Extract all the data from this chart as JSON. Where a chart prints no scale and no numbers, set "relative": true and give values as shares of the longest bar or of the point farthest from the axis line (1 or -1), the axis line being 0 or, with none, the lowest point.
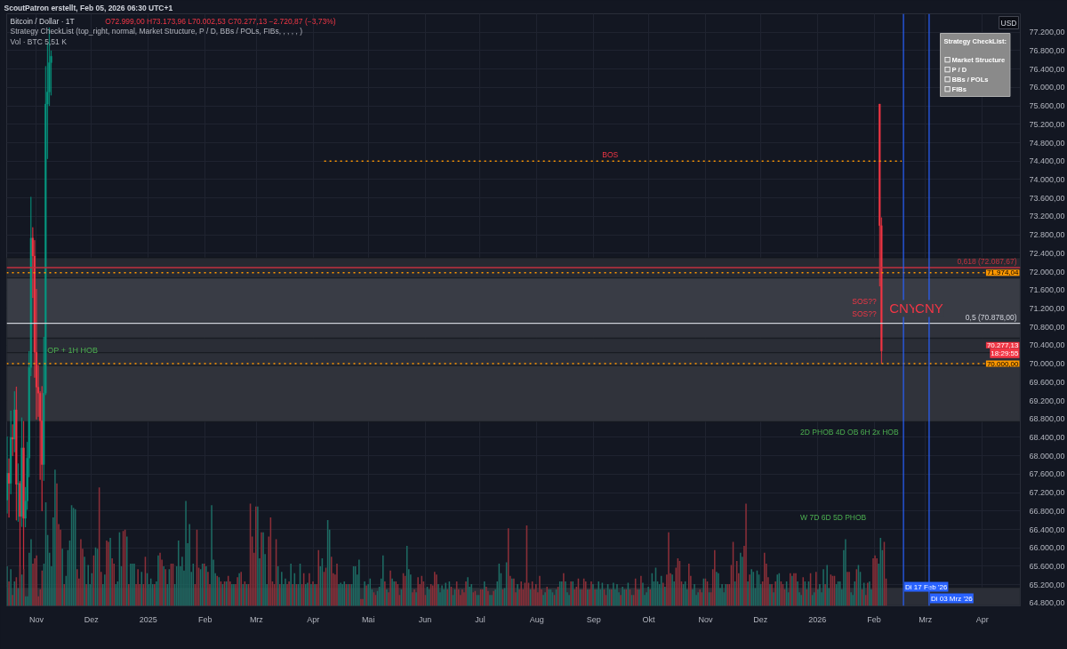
{
  "chart_data": [
    {
      "type": "candlestick",
      "title": "Bitcoin / Dollar · 1T",
      "subtitle": "O72.999,00 H73.173,96 L70.002,53 C70.277,13 −2.720,87 (−3,73%)",
      "ylabel": "USD",
      "x": [
        "2024-10-16",
        "2024-10-17",
        "2024-10-18",
        "2024-10-19",
        "2024-10-20",
        "2024-10-21",
        "2024-10-22",
        "2024-10-23",
        "2024-10-24",
        "2024-10-25",
        "2024-10-26",
        "2024-10-27",
        "2024-10-28",
        "2024-10-29",
        "2024-10-30",
        "2024-10-31",
        "2024-11-01",
        "2024-11-02",
        "2024-11-03",
        "2024-11-04",
        "2024-11-05",
        "2024-11-06",
        "2024-11-07",
        "2024-11-08",
        "2024-11-09",
        "2026-02-04",
        "2026-02-05"
      ],
      "ohlc": [
        [
          67040,
          68420,
          66750,
          67620
        ],
        [
          67620,
          67940,
          66660,
          67400
        ],
        [
          67400,
          68980,
          67170,
          68400
        ],
        [
          68400,
          68680,
          68000,
          68360
        ],
        [
          68360,
          69400,
          68080,
          69000
        ],
        [
          69000,
          69500,
          66600,
          67380
        ],
        [
          67380,
          67830,
          66570,
          67400
        ],
        [
          67400,
          67450,
          65260,
          66680
        ],
        [
          66680,
          68830,
          66460,
          68170
        ],
        [
          68170,
          68750,
          65520,
          66640
        ],
        [
          66640,
          67320,
          66450,
          67020
        ],
        [
          67020,
          68300,
          66830,
          67950
        ],
        [
          67950,
          70270,
          67540,
          69920
        ],
        [
          69920,
          73620,
          69730,
          72730
        ],
        [
          72730,
          72960,
          71430,
          72340
        ],
        [
          72340,
          72680,
          69700,
          70250
        ],
        [
          70250,
          71620,
          68790,
          69490
        ],
        [
          69490,
          69970,
          68850,
          69360
        ],
        [
          69360,
          69400,
          67480,
          68760
        ],
        [
          68760,
          69510,
          66800,
          67810
        ],
        [
          67810,
          70580,
          67460,
          69360
        ],
        [
          69360,
          76460,
          69320,
          75640
        ],
        [
          75640,
          76960,
          74450,
          75900
        ],
        [
          75900,
          77300,
          75600,
          76540
        ],
        [
          76540,
          76800,
          75830,
          76680
        ],
        [
          75640,
          75640,
          71680,
          72999
        ],
        [
          72999.0,
          73173.96,
          70002.53,
          70277.13
        ]
      ],
      "colors": [
        "#089981",
        "#f23645",
        "#089981",
        "#f23645",
        "#089981",
        "#f23645",
        "#089981",
        "#f23645",
        "#089981",
        "#f23645",
        "#089981",
        "#089981",
        "#089981",
        "#089981",
        "#f23645",
        "#f23645",
        "#f23645",
        "#f23645",
        "#f23645",
        "#f23645",
        "#089981",
        "#089981",
        "#089981",
        "#089981",
        "#089981",
        "#f23645",
        "#f23645"
      ],
      "value_labels": [
        null,
        null,
        null,
        null,
        null,
        null,
        null,
        null,
        null,
        null,
        null,
        null,
        null,
        null,
        null,
        null,
        null,
        null,
        null,
        null,
        null,
        null,
        null,
        null,
        null,
        null,
        "70.277,13"
      ],
      "series": [
        {
          "type": "line",
          "x": [
            "2025-04-07",
            "2026-02-16"
          ],
          "values": [
            74400,
            74400
          ],
          "color": "#ff9800",
          "line_style": "dotted"
        }
      ],
      "xlim": [
        "2024-10-15T18:00",
        "2026-04-21T18:00"
      ],
      "xticks": [
        {
          "value": "2024-11-01",
          "label": "Nov"
        },
        {
          "value": "2024-12-01",
          "label": "Dez"
        },
        {
          "value": "2025-01-01",
          "label": "2025"
        },
        {
          "value": "2025-02-01",
          "label": "Feb"
        },
        {
          "value": "2025-03-01",
          "label": "Mrz"
        },
        {
          "value": "2025-04-01",
          "label": "Apr"
        },
        {
          "value": "2025-05-01",
          "label": "Mai"
        },
        {
          "value": "2025-06-01",
          "label": "Jun"
        },
        {
          "value": "2025-07-01",
          "label": "Jul"
        },
        {
          "value": "2025-08-01",
          "label": "Aug"
        },
        {
          "value": "2025-09-01",
          "label": "Sep"
        },
        {
          "value": "2025-10-01",
          "label": "Okt"
        },
        {
          "value": "2025-11-01",
          "label": "Nov"
        },
        {
          "value": "2025-12-01",
          "label": "Dez"
        },
        {
          "value": "2026-01-01",
          "label": "2026"
        },
        {
          "value": "2026-02-01",
          "label": "Feb"
        },
        {
          "value": "2026-03-01",
          "label": "Mrz"
        },
        {
          "value": "2026-04-01",
          "label": "Apr"
        }
      ],
      "ylim": [
        64740,
        77600
      ],
      "yticks": [
        {
          "value": 64800,
          "label": "64.800,00"
        },
        {
          "value": 65200,
          "label": "65.200,00"
        },
        {
          "value": 65600,
          "label": "65.600,00"
        },
        {
          "value": 66000,
          "label": "66.000,00"
        },
        {
          "value": 66400,
          "label": "66.400,00"
        },
        {
          "value": 66800,
          "label": "66.800,00"
        },
        {
          "value": 67200,
          "label": "67.200,00"
        },
        {
          "value": 67600,
          "label": "67.600,00"
        },
        {
          "value": 68000,
          "label": "68.000,00"
        },
        {
          "value": 68400,
          "label": "68.400,00"
        },
        {
          "value": 68800,
          "label": "68.800,00"
        },
        {
          "value": 69200,
          "label": "69.200,00"
        },
        {
          "value": 69600,
          "label": "69.600,00"
        },
        {
          "value": 70000,
          "label": "70.000,00"
        },
        {
          "value": 70400,
          "label": "70.400,00"
        },
        {
          "value": 70800,
          "label": "70.800,00"
        },
        {
          "value": 71200,
          "label": "71.200,00"
        },
        {
          "value": 71600,
          "label": "71.600,00"
        },
        {
          "value": 72000,
          "label": "72.000,00"
        },
        {
          "value": 72400,
          "label": "72.400,00"
        },
        {
          "value": 72800,
          "label": "72.800,00"
        },
        {
          "value": 73200,
          "label": "73.200,00"
        },
        {
          "value": 73600,
          "label": "73.600,00"
        },
        {
          "value": 74000,
          "label": "74.000,00"
        },
        {
          "value": 74400,
          "label": "74.400,00"
        },
        {
          "value": 74800,
          "label": "74.800,00"
        },
        {
          "value": 75200,
          "label": "75.200,00"
        },
        {
          "value": 75600,
          "label": "75.600,00"
        },
        {
          "value": 76000,
          "label": "76.000,00"
        },
        {
          "value": 76400,
          "label": "76.400,00"
        },
        {
          "value": 76800,
          "label": "76.800,00"
        },
        {
          "value": 77200,
          "label": "77.200,00"
        }
      ],
      "grid": true,
      "bands": [
        {
          "axis": "y",
          "from": 72300,
          "to": 71860,
          "color": "#262931"
        },
        {
          "axis": "y",
          "from": 71860,
          "to": 70880,
          "color": "#393c45"
        },
        {
          "axis": "y",
          "from": 70880,
          "to": 70550,
          "color": "#2f323b"
        },
        {
          "axis": "y",
          "from": 70550,
          "to": 70240,
          "color": "#2a2d36"
        },
        {
          "axis": "y",
          "from": 70240,
          "to": 69960,
          "color": "#2c2f38"
        },
        {
          "axis": "y",
          "from": 69960,
          "to": 68740,
          "color": "#30333b"
        },
        {
          "axis": "y",
          "from": 65140,
          "to": 64740,
          "color": "#2b2e37"
        }
      ],
      "ref_lines": [
        {
          "axis": "y",
          "value": 72087.67,
          "label": "0,618 (72.087,67)",
          "color": "#c2313f"
        },
        {
          "axis": "y",
          "value": 71974.04,
          "label": "71.974,04",
          "color": "#ff9800",
          "line_style": "dotted"
        },
        {
          "axis": "y",
          "value": 70878,
          "label": "0,5 (70.878,00)",
          "color": "#d1d4dc"
        },
        {
          "axis": "y",
          "value": 70000,
          "label": "70.000,00",
          "color": "#ff9800",
          "line_style": "dotted"
        },
        {
          "axis": "x",
          "value": "2026-02-17",
          "label": "Di 17 Feb '26",
          "color": "#2962ff"
        },
        {
          "axis": "x",
          "value": "2026-03-03",
          "label": "Di 03 Mrz '26",
          "color": "#2962ff"
        }
      ],
      "annotations": [
        "ScoutPatron erstellt, Feb 05, 2026 06:30 UTC+1",
        "Strategy CheckList (top_right, normal, Market Structure, P / D, BBs / POLs, FIBs, , , , , )",
        "Vol · BTC 5,51 K",
        "Strategy CheckList:\n\n☐ Market Structure\n☐ P / D\n☐ BBs / POLs\n☐ FIBs",
        "18:29:55",
        "2D PHOB 4D OB 6H 2x HOB",
        "W 7D 6D 5D PHOB",
        "SOS??",
        "SOS??",
        {
          "text": "BOS",
          "x": "2025-09-10",
          "y": 74400
        },
        {
          "text": "CNY",
          "x": "2026-02-17",
          "y": 71200
        },
        {
          "text": "CNY",
          "x": "2026-03-03",
          "y": 71200
        },
        {
          "text": "OP + 1H HOB",
          "x": "2024-11-07",
          "y": 70300
        }
      ]
    },
    {
      "type": "bar",
      "relative": true,
      "tick_labels": false,
      "xlim": [
        "2024-10-15T18:00",
        "2026-04-21T18:00"
      ],
      "x": [
        "2024-10-16",
        "2024-10-17",
        "2024-10-18",
        "2024-10-19",
        "2024-10-20",
        "2024-10-21",
        "2024-10-22",
        "2024-10-23",
        "2024-10-24",
        "2024-10-25",
        "2024-10-26",
        "2024-10-27",
        "2024-10-28",
        "2024-10-29",
        "2024-10-30",
        "2024-10-31",
        "2024-11-01",
        "2024-11-02",
        "2024-11-03",
        "2024-11-04",
        "2024-11-05",
        "2024-11-06",
        "2024-11-07",
        "2024-11-08",
        "2024-11-09",
        "2024-11-10",
        "2024-11-11",
        "2024-11-12",
        "2024-11-13",
        "2024-11-14",
        "2024-11-15",
        "2024-11-16",
        "2024-11-17",
        "2024-11-18",
        "2024-11-19",
        "2024-11-20",
        "2024-11-21",
        "2024-11-22",
        "2024-11-23",
        "2024-11-24",
        "2024-11-25",
        "2024-11-26",
        "2024-11-27",
        "2024-11-28",
        "2024-11-29",
        "2024-11-30",
        "2024-12-01",
        "2024-12-02",
        "2024-12-03",
        "2024-12-04",
        "2024-12-05",
        "2024-12-06",
        "2024-12-07",
        "2024-12-08",
        "2024-12-09",
        "2024-12-10",
        "2024-12-11",
        "2024-12-12",
        "2024-12-13",
        "2024-12-14",
        "2024-12-15",
        "2024-12-16",
        "2024-12-17",
        "2024-12-18",
        "2024-12-19",
        "2024-12-20",
        "2024-12-21",
        "2024-12-22",
        "2024-12-23",
        "2024-12-24",
        "2024-12-25",
        "2024-12-26",
        "2024-12-27",
        "2024-12-28",
        "2024-12-29",
        "2024-12-30",
        "2024-12-31",
        "2025-01-01",
        "2025-01-02",
        "2025-01-03",
        "2025-01-04",
        "2025-01-05",
        "2025-01-06",
        "2025-01-07",
        "2025-01-08",
        "2025-01-09",
        "2025-01-10",
        "2025-01-11",
        "2025-01-12",
        "2025-01-13",
        "2025-01-14",
        "2025-01-15",
        "2025-01-16",
        "2025-01-17",
        "2025-01-18",
        "2025-01-19",
        "2025-01-20",
        "2025-01-21",
        "2025-01-22",
        "2025-01-23",
        "2025-01-24",
        "2025-01-25",
        "2025-01-26",
        "2025-01-27",
        "2025-01-28",
        "2025-01-29",
        "2025-01-30",
        "2025-01-31",
        "2025-02-01",
        "2025-02-02",
        "2025-02-03",
        "2025-02-04",
        "2025-02-05",
        "2025-02-06",
        "2025-02-07",
        "2025-02-08",
        "2025-02-09",
        "2025-02-10",
        "2025-02-11",
        "2025-02-12",
        "2025-02-13",
        "2025-02-14",
        "2025-02-15",
        "2025-02-16",
        "2025-02-17",
        "2025-02-18",
        "2025-02-19",
        "2025-02-20",
        "2025-02-21",
        "2025-02-22",
        "2025-02-23",
        "2025-02-24",
        "2025-02-25",
        "2025-02-26",
        "2025-02-27",
        "2025-02-28",
        "2025-03-01",
        "2025-03-02",
        "2025-03-03",
        "2025-03-04",
        "2025-03-05",
        "2025-03-06",
        "2025-03-07",
        "2025-03-08",
        "2025-03-09",
        "2025-03-10",
        "2025-03-11",
        "2025-03-12",
        "2025-03-13",
        "2025-03-14",
        "2025-03-15",
        "2025-03-16",
        "2025-03-17",
        "2025-03-18",
        "2025-03-19",
        "2025-03-20",
        "2025-03-21",
        "2025-03-22",
        "2025-03-23",
        "2025-03-24",
        "2025-03-25",
        "2025-03-26",
        "2025-03-27",
        "2025-03-28",
        "2025-03-29",
        "2025-03-30",
        "2025-03-31",
        "2025-04-01",
        "2025-04-02",
        "2025-04-03",
        "2025-04-04",
        "2025-04-05",
        "2025-04-06",
        "2025-04-07",
        "2025-04-08",
        "2025-04-09",
        "2025-04-10",
        "2025-04-11",
        "2025-04-12",
        "2025-04-13",
        "2025-04-14",
        "2025-04-15",
        "2025-04-16",
        "2025-04-17",
        "2025-04-18",
        "2025-04-19",
        "2025-04-20",
        "2025-04-21",
        "2025-04-22",
        "2025-04-23",
        "2025-04-24",
        "2025-04-25",
        "2025-04-26",
        "2025-04-27",
        "2025-04-28",
        "2025-04-29",
        "2025-04-30",
        "2025-05-01",
        "2025-05-02",
        "2025-05-03",
        "2025-05-04",
        "2025-05-05",
        "2025-05-06",
        "2025-05-07",
        "2025-05-08",
        "2025-05-09",
        "2025-05-10",
        "2025-05-11",
        "2025-05-12",
        "2025-05-13",
        "2025-05-14",
        "2025-05-15",
        "2025-05-16",
        "2025-05-17",
        "2025-05-18",
        "2025-05-19",
        "2025-05-20",
        "2025-05-21",
        "2025-05-22",
        "2025-05-23",
        "2025-05-24",
        "2025-05-25",
        "2025-05-26",
        "2025-05-27",
        "2025-05-28",
        "2025-05-29",
        "2025-05-30",
        "2025-05-31",
        "2025-06-01",
        "2025-06-02",
        "2025-06-03",
        "2025-06-04",
        "2025-06-05",
        "2025-06-06",
        "2025-06-07",
        "2025-06-08",
        "2025-06-09",
        "2025-06-10",
        "2025-06-11",
        "2025-06-12",
        "2025-06-13",
        "2025-06-14",
        "2025-06-15",
        "2025-06-16",
        "2025-06-17",
        "2025-06-18",
        "2025-06-19",
        "2025-06-20",
        "2025-06-21",
        "2025-06-22",
        "2025-06-23",
        "2025-06-24",
        "2025-06-25",
        "2025-06-26",
        "2025-06-27",
        "2025-06-28",
        "2025-06-29",
        "2025-06-30",
        "2025-07-01",
        "2025-07-02",
        "2025-07-03",
        "2025-07-04",
        "2025-07-05",
        "2025-07-06",
        "2025-07-07",
        "2025-07-08",
        "2025-07-09",
        "2025-07-10",
        "2025-07-11",
        "2025-07-12",
        "2025-07-13",
        "2025-07-14",
        "2025-07-15",
        "2025-07-16",
        "2025-07-17",
        "2025-07-18",
        "2025-07-19",
        "2025-07-20",
        "2025-07-21",
        "2025-07-22",
        "2025-07-23",
        "2025-07-24",
        "2025-07-25",
        "2025-07-26",
        "2025-07-27",
        "2025-07-28",
        "2025-07-29",
        "2025-07-30",
        "2025-07-31",
        "2025-08-01",
        "2025-08-02",
        "2025-08-03",
        "2025-08-04",
        "2025-08-05",
        "2025-08-06",
        "2025-08-07",
        "2025-08-08",
        "2025-08-09",
        "2025-08-10",
        "2025-08-11",
        "2025-08-12",
        "2025-08-13",
        "2025-08-14",
        "2025-08-15",
        "2025-08-16",
        "2025-08-17",
        "2025-08-18",
        "2025-08-19",
        "2025-08-20",
        "2025-08-21",
        "2025-08-22",
        "2025-08-23",
        "2025-08-24",
        "2025-08-25",
        "2025-08-26",
        "2025-08-27",
        "2025-08-28",
        "2025-08-29",
        "2025-08-30",
        "2025-08-31",
        "2025-09-01",
        "2025-09-02",
        "2025-09-03",
        "2025-09-04",
        "2025-09-05",
        "2025-09-06",
        "2025-09-07",
        "2025-09-08",
        "2025-09-09",
        "2025-09-10",
        "2025-09-11",
        "2025-09-12",
        "2025-09-13",
        "2025-09-14",
        "2025-09-15",
        "2025-09-16",
        "2025-09-17",
        "2025-09-18",
        "2025-09-19",
        "2025-09-20",
        "2025-09-21",
        "2025-09-22",
        "2025-09-23",
        "2025-09-24",
        "2025-09-25",
        "2025-09-26",
        "2025-09-27",
        "2025-09-28",
        "2025-09-29",
        "2025-09-30",
        "2025-10-01",
        "2025-10-02",
        "2025-10-03",
        "2025-10-04",
        "2025-10-05",
        "2025-10-06",
        "2025-10-07",
        "2025-10-08",
        "2025-10-09",
        "2025-10-10",
        "2025-10-11",
        "2025-10-12",
        "2025-10-13",
        "2025-10-14",
        "2025-10-15",
        "2025-10-16",
        "2025-10-17",
        "2025-10-18",
        "2025-10-19",
        "2025-10-20",
        "2025-10-21",
        "2025-10-22",
        "2025-10-23",
        "2025-10-24",
        "2025-10-25",
        "2025-10-26",
        "2025-10-27",
        "2025-10-28",
        "2025-10-29",
        "2025-10-30",
        "2025-10-31",
        "2025-11-01",
        "2025-11-02",
        "2025-11-03",
        "2025-11-04",
        "2025-11-05",
        "2025-11-06",
        "2025-11-07",
        "2025-11-08",
        "2025-11-09",
        "2025-11-10",
        "2025-11-11",
        "2025-11-12",
        "2025-11-13",
        "2025-11-14",
        "2025-11-15",
        "2025-11-16",
        "2025-11-17",
        "2025-11-18",
        "2025-11-19",
        "2025-11-20",
        "2025-11-21",
        "2025-11-22",
        "2025-11-23",
        "2025-11-24",
        "2025-11-25",
        "2025-11-26",
        "2025-11-27",
        "2025-11-28",
        "2025-11-29",
        "2025-11-30",
        "2025-12-01",
        "2025-12-02",
        "2025-12-03",
        "2025-12-04",
        "2025-12-05",
        "2025-12-06",
        "2025-12-07",
        "2025-12-08",
        "2025-12-09",
        "2025-12-10",
        "2025-12-11",
        "2025-12-12",
        "2025-12-13",
        "2025-12-14",
        "2025-12-15",
        "2025-12-16",
        "2025-12-17",
        "2025-12-18",
        "2025-12-19",
        "2025-12-20",
        "2025-12-21",
        "2025-12-22",
        "2025-12-23",
        "2025-12-24",
        "2025-12-25",
        "2025-12-26",
        "2025-12-27",
        "2025-12-28",
        "2025-12-29",
        "2025-12-30",
        "2025-12-31",
        "2026-01-01",
        "2026-01-02",
        "2026-01-03",
        "2026-01-04",
        "2026-01-05",
        "2026-01-06",
        "2026-01-07",
        "2026-01-08",
        "2026-01-09",
        "2026-01-10",
        "2026-01-11",
        "2026-01-12",
        "2026-01-13",
        "2026-01-14",
        "2026-01-15",
        "2026-01-16",
        "2026-01-17",
        "2026-01-18",
        "2026-01-19",
        "2026-01-20",
        "2026-01-21",
        "2026-01-22",
        "2026-01-23",
        "2026-01-24",
        "2026-01-25",
        "2026-01-26",
        "2026-01-27",
        "2026-01-28",
        "2026-01-29",
        "2026-01-30",
        "2026-01-31",
        "2026-02-01",
        "2026-02-02",
        "2026-02-03",
        "2026-02-04",
        "2026-02-05"
      ],
      "values": [
        0.29,
        0.18,
        0.27,
        0.08,
        0.18,
        0.21,
        0.13,
        0.29,
        0.23,
        0.27,
        0.07,
        0.07,
        0.39,
        0.49,
        0.31,
        0.35,
        0.37,
        0.07,
        0.12,
        0.26,
        0.31,
        0.76,
        0.52,
        0.39,
        0.29,
        0.65,
        1,
        0.9,
        0.6,
        0.56,
        0.42,
        0.16,
        0.22,
        0.41,
        0.48,
        0.74,
        0.72,
        0.71,
        0.27,
        0.2,
        0.49,
        0.42,
        0.36,
        0.16,
        0.3,
        0.16,
        0.24,
        0.37,
        0.43,
        0.42,
        0.87,
        0.25,
        0.16,
        0.23,
        0.48,
        0.47,
        0.5,
        0.35,
        0.31,
        0.16,
        0.18,
        0.54,
        0.29,
        0.55,
        0.56,
        0.51,
        0.16,
        0.31,
        0.31,
        0.31,
        0.16,
        0.27,
        0.16,
        0.25,
        0.16,
        0.36,
        0.24,
        0.16,
        0.2,
        0.16,
        0.16,
        0.18,
        0.37,
        0.39,
        0.34,
        0.29,
        0.27,
        0.16,
        0.27,
        0.31,
        0.31,
        0.16,
        0.29,
        0.48,
        0.29,
        0.36,
        0.26,
        0.77,
        0.46,
        0.6,
        0.25,
        0.31,
        0.16,
        0.56,
        0.28,
        0.27,
        0.31,
        0.31,
        0.29,
        0.25,
        0.16,
        0.74,
        0.34,
        0.24,
        0.22,
        0.21,
        0.18,
        0.16,
        0.18,
        0.18,
        0.22,
        0.18,
        0.16,
        0.16,
        0.16,
        0.21,
        0.24,
        0.25,
        0.16,
        0.18,
        0.16,
        0.16,
        0.75,
        0.51,
        0.39,
        0.73,
        0.73,
        0.35,
        0.54,
        0.54,
        0.38,
        0.16,
        0.51,
        0.65,
        0.18,
        0.16,
        0.49,
        0.29,
        0.16,
        0.25,
        0.16,
        0.2,
        0.16,
        0.18,
        0.31,
        0.16,
        0.24,
        0.16,
        0.16,
        0.31,
        0.16,
        0.24,
        0.16,
        0.17,
        0.24,
        0.16,
        0.18,
        0.16,
        0.16,
        0.41,
        0.29,
        0.35,
        0.25,
        0.28,
        0.63,
        0.56,
        0.36,
        0.24,
        0.23,
        0.31,
        0.16,
        0.17,
        0.16,
        0.18,
        0.16,
        0.16,
        0.16,
        0.16,
        0.29,
        0.29,
        0.23,
        0.34,
        0.05,
        0.05,
        0.18,
        0.15,
        0.16,
        0.2,
        0.12,
        0.1,
        0.08,
        0.11,
        0.14,
        0.2,
        0.37,
        0.18,
        0.12,
        0.1,
        0.26,
        0.2,
        0.18,
        0.18,
        0.16,
        0.08,
        0.12,
        0.24,
        0.22,
        0.44,
        0.27,
        0.23,
        0.1,
        0.12,
        0.1,
        0.21,
        0.16,
        0.22,
        0.18,
        0.08,
        0.14,
        0.12,
        0.16,
        0.15,
        0.25,
        0.23,
        0.16,
        0.1,
        0.15,
        0.12,
        0.17,
        0.12,
        0.18,
        0.14,
        0.08,
        0.12,
        0.18,
        0.12,
        0.08,
        0.12,
        0.1,
        0.18,
        0.21,
        0.14,
        0.16,
        0.1,
        0.11,
        0.08,
        0.08,
        0.12,
        0.12,
        0.18,
        0.14,
        0.11,
        0.08,
        0.08,
        0.11,
        0.12,
        0.18,
        0.31,
        0.24,
        0.12,
        0.13,
        0.32,
        0.57,
        0.22,
        0.2,
        0.2,
        0.1,
        0.16,
        0.12,
        0.18,
        0.12,
        0.17,
        0.59,
        0.17,
        0.12,
        0.18,
        0.12,
        0.16,
        0.1,
        0.22,
        0.12,
        0.08,
        0.1,
        0.14,
        0.12,
        0.12,
        0.1,
        0.08,
        0.12,
        0.14,
        0.18,
        0.18,
        0.24,
        0.18,
        0.1,
        0.08,
        0.18,
        0.18,
        0.12,
        0.14,
        0.2,
        0.12,
        0.12,
        0.2,
        0.18,
        0.12,
        0.12,
        0.18,
        0.16,
        0.12,
        0.12,
        0.18,
        0.12,
        0.17,
        0.12,
        0.08,
        0.16,
        0.12,
        0.12,
        0.17,
        0.12,
        0.16,
        0.1,
        0.08,
        0.14,
        0.12,
        0.12,
        0.17,
        0.12,
        0.08,
        0.08,
        0.2,
        0.12,
        0.12,
        0.22,
        0.17,
        0.08,
        0.1,
        0.14,
        0.12,
        0.24,
        0.18,
        0.28,
        0.18,
        0.16,
        0.22,
        0.17,
        0.14,
        0.23,
        0.54,
        0.24,
        0.23,
        0.18,
        0.28,
        0.35,
        0.33,
        0.18,
        0.16,
        0.18,
        0.12,
        0.31,
        0.22,
        0.12,
        0.16,
        0.08,
        0.1,
        0.12,
        0.1,
        0.2,
        0.2,
        0.18,
        0.1,
        0.1,
        0.27,
        0.41,
        0.25,
        0.24,
        0.13,
        0.16,
        0.1,
        0.16,
        0.16,
        0.16,
        0.3,
        0.47,
        0.18,
        0.33,
        0.24,
        0.39,
        0.36,
        0.44,
        0.75,
        0.18,
        0.23,
        0.27,
        0.25,
        0.13,
        0.26,
        0.23,
        0.16,
        0.18,
        0.39,
        0.31,
        0.21,
        0.16,
        0.16,
        0.1,
        0.18,
        0.23,
        0.24,
        0.18,
        0.16,
        0.12,
        0.18,
        0.1,
        0.24,
        0.22,
        0.24,
        0.24,
        0.18,
        0.1,
        0.08,
        0.21,
        0.18,
        0.12,
        0.18,
        0.24,
        0.08,
        0.1,
        0.25,
        0.12,
        0.16,
        0.1,
        0.27,
        0.16,
        0.3,
        0.13,
        0.23,
        0.22,
        0.22,
        0.16,
        0.18,
        0.18,
        0.12,
        0.41,
        0.49,
        0.25,
        0.25,
        0.1,
        0.08,
        0.18,
        0.27,
        0.3,
        0.25,
        0.12,
        0.17,
        0.08,
        0.17,
        0.18,
        0.12,
        0.35,
        0.37,
        0.35,
        0.31,
        0.5,
        0.41,
        0.47,
        0.2
      ],
      "colors": [
        "#1d6b63",
        "#8b2f38",
        "#1d6b63",
        "#8b2f38",
        "#1d6b63",
        "#8b2f38",
        "#1d6b63",
        "#8b2f38",
        "#1d6b63",
        "#8b2f38",
        "#1d6b63",
        "#1d6b63",
        "#1d6b63",
        "#1d6b63",
        "#8b2f38",
        "#8b2f38",
        "#8b2f38",
        "#8b2f38",
        "#8b2f38",
        "#8b2f38",
        "#1d6b63",
        "#1d6b63",
        "#1d6b63",
        "#1d6b63",
        "#1d6b63",
        "#1d6b63",
        "#1d6b63",
        "#8b2f38",
        "#8b2f38",
        "#8b2f38",
        "#1d6b63",
        "#8b2f38",
        "#1d6b63",
        "#1d6b63",
        "#1d6b63",
        "#1d6b63",
        "#1d6b63",
        "#1d6b63",
        "#8b2f38",
        "#8b2f38",
        "#8b2f38",
        "#8b2f38",
        "#1d6b63",
        "#8b2f38",
        "#1d6b63",
        "#1d6b63",
        "#1d6b63",
        "#8b2f38",
        "#1d6b63",
        "#1d6b63",
        "#8b2f38",
        "#8b2f38",
        "#1d6b63",
        "#1d6b63",
        "#8b2f38",
        "#8b2f38",
        "#1d6b63",
        "#8b2f38",
        "#8b2f38",
        "#1d6b63",
        "#1d6b63",
        "#1d6b63",
        "#1d6b63",
        "#8b2f38",
        "#8b2f38",
        "#1d6b63",
        "#8b2f38",
        "#1d6b63",
        "#1d6b63",
        "#1d6b63",
        "#8b2f38",
        "#8b2f38",
        "#8b2f38",
        "#1d6b63",
        "#8b2f38",
        "#8b2f38",
        "#1d6b63",
        "#1d6b63",
        "#1d6b63",
        "#1d6b63",
        "#8b2f38",
        "#1d6b63",
        "#1d6b63",
        "#8b2f38",
        "#8b2f38",
        "#1d6b63",
        "#8b2f38",
        "#1d6b63",
        "#1d6b63",
        "#8b2f38",
        "#8b2f38",
        "#1d6b63",
        "#1d6b63",
        "#1d6b63",
        "#1d6b63",
        "#1d6b63",
        "#1d6b63",
        "#1d6b63",
        "#1d6b63",
        "#1d6b63",
        "#1d6b63",
        "#1d6b63",
        "#8b2f38",
        "#8b2f38",
        "#8b2f38",
        "#1d6b63",
        "#1d6b63",
        "#8b2f38",
        "#1d6b63",
        "#8b2f38",
        "#8b2f38",
        "#1d6b63",
        "#1d6b63",
        "#1d6b63",
        "#8b2f38",
        "#1d6b63",
        "#8b2f38",
        "#1d6b63",
        "#8b2f38",
        "#1d6b63",
        "#8b2f38",
        "#8b2f38",
        "#1d6b63",
        "#1d6b63",
        "#8b2f38",
        "#8b2f38",
        "#1d6b63",
        "#8b2f38",
        "#1d6b63",
        "#8b2f38",
        "#1d6b63",
        "#8b2f38",
        "#8b2f38",
        "#8b2f38",
        "#8b2f38",
        "#8b2f38",
        "#1d6b63",
        "#1d6b63",
        "#8b2f38",
        "#1d6b63",
        "#1d6b63",
        "#1d6b63",
        "#8b2f38",
        "#8b2f38",
        "#8b2f38",
        "#8b2f38",
        "#8b2f38",
        "#1d6b63",
        "#8b2f38",
        "#1d6b63",
        "#1d6b63",
        "#1d6b63",
        "#8b2f38",
        "#8b2f38",
        "#1d6b63",
        "#8b2f38",
        "#1d6b63",
        "#8b2f38",
        "#1d6b63",
        "#1d6b63",
        "#8b2f38",
        "#8b2f38",
        "#1d6b63",
        "#1d6b63",
        "#8b2f38",
        "#1d6b63",
        "#8b2f38",
        "#1d6b63",
        "#8b2f38",
        "#8b2f38",
        "#1d6b63",
        "#1d6b63",
        "#8b2f38",
        "#8b2f38",
        "#1d6b63",
        "#1d6b63",
        "#8b2f38",
        "#8b2f38",
        "#8b2f38",
        "#8b2f38",
        "#1d6b63",
        "#1d6b63",
        "#1d6b63",
        "#1d6b63",
        "#8b2f38",
        "#1d6b63",
        "#8b2f38",
        "#1d6b63",
        "#1d6b63",
        "#1d6b63",
        "#1d6b63",
        "#1d6b63",
        "#8b2f38",
        "#8b2f38",
        "#1d6b63",
        "#8b2f38",
        "#1d6b63",
        "#1d6b63",
        "#1d6b63",
        "#8b2f38",
        "#8b2f38",
        "#1d6b63",
        "#1d6b63",
        "#1d6b63",
        "#1d6b63",
        "#8b2f38",
        "#1d6b63",
        "#8b2f38",
        "#8b2f38",
        "#1d6b63",
        "#1d6b63",
        "#8b2f38",
        "#8b2f38",
        "#8b2f38",
        "#1d6b63",
        "#8b2f38",
        "#8b2f38",
        "#1d6b63",
        "#1d6b63",
        "#1d6b63",
        "#8b2f38",
        "#8b2f38",
        "#1d6b63",
        "#8b2f38",
        "#8b2f38",
        "#8b2f38",
        "#8b2f38",
        "#8b2f38",
        "#1d6b63",
        "#1d6b63",
        "#8b2f38",
        "#8b2f38",
        "#8b2f38",
        "#8b2f38",
        "#1d6b63",
        "#1d6b63",
        "#1d6b63",
        "#1d6b63",
        "#1d6b63",
        "#8b2f38",
        "#1d6b63",
        "#8b2f38",
        "#1d6b63",
        "#1d6b63",
        "#8b2f38",
        "#8b2f38",
        "#8b2f38",
        "#8b2f38",
        "#8b2f38",
        "#8b2f38",
        "#1d6b63",
        "#1d6b63",
        "#1d6b63",
        "#8b2f38",
        "#8b2f38",
        "#1d6b63",
        "#1d6b63",
        "#8b2f38",
        "#8b2f38",
        "#1d6b63",
        "#8b2f38",
        "#8b2f38",
        "#1d6b63",
        "#1d6b63",
        "#8b2f38",
        "#1d6b63",
        "#1d6b63",
        "#1d6b63",
        "#1d6b63",
        "#8b2f38",
        "#1d6b63",
        "#1d6b63",
        "#8b2f38",
        "#8b2f38",
        "#1d6b63",
        "#8b2f38",
        "#8b2f38",
        "#1d6b63",
        "#8b2f38",
        "#8b2f38",
        "#8b2f38",
        "#8b2f38",
        "#8b2f38",
        "#8b2f38",
        "#1d6b63",
        "#8b2f38",
        "#8b2f38",
        "#8b2f38",
        "#8b2f38",
        "#8b2f38",
        "#8b2f38",
        "#1d6b63",
        "#1d6b63",
        "#8b2f38",
        "#1d6b63",
        "#1d6b63",
        "#1d6b63",
        "#8b2f38",
        "#1d6b63",
        "#8b2f38",
        "#1d6b63",
        "#1d6b63",
        "#8b2f38",
        "#1d6b63",
        "#1d6b63",
        "#1d6b63",
        "#8b2f38",
        "#1d6b63",
        "#8b2f38",
        "#8b2f38",
        "#8b2f38",
        "#1d6b63",
        "#8b2f38",
        "#8b2f38",
        "#8b2f38",
        "#1d6b63",
        "#8b2f38",
        "#8b2f38",
        "#1d6b63",
        "#8b2f38",
        "#1d6b63",
        "#1d6b63",
        "#1d6b63",
        "#1d6b63",
        "#8b2f38",
        "#8b2f38",
        "#1d6b63",
        "#1d6b63",
        "#8b2f38",
        "#1d6b63",
        "#1d6b63",
        "#1d6b63",
        "#1d6b63",
        "#8b2f38",
        "#1d6b63",
        "#1d6b63",
        "#8b2f38",
        "#1d6b63",
        "#8b2f38",
        "#1d6b63",
        "#8b2f38",
        "#8b2f38",
        "#8b2f38",
        "#1d6b63",
        "#8b2f38",
        "#1d6b63",
        "#1d6b63",
        "#1d6b63",
        "#1d6b63",
        "#8b2f38",
        "#1d6b63",
        "#1d6b63",
        "#1d6b63",
        "#1d6b63",
        "#1d6b63",
        "#1d6b63",
        "#8b2f38",
        "#1d6b63",
        "#8b2f38",
        "#8b2f38",
        "#8b2f38",
        "#1d6b63",
        "#1d6b63",
        "#8b2f38",
        "#8b2f38",
        "#8b2f38",
        "#8b2f38",
        "#1d6b63",
        "#1d6b63",
        "#1d6b63",
        "#8b2f38",
        "#8b2f38",
        "#1d6b63",
        "#1d6b63",
        "#1d6b63",
        "#1d6b63",
        "#8b2f38",
        "#8b2f38",
        "#1d6b63",
        "#8b2f38",
        "#8b2f38",
        "#1d6b63",
        "#8b2f38",
        "#8b2f38",
        "#8b2f38",
        "#1d6b63",
        "#1d6b63",
        "#1d6b63",
        "#1d6b63",
        "#1d6b63",
        "#1d6b63",
        "#8b2f38",
        "#8b2f38",
        "#8b2f38",
        "#8b2f38",
        "#1d6b63",
        "#8b2f38",
        "#8b2f38",
        "#1d6b63",
        "#1d6b63",
        "#8b2f38",
        "#8b2f38",
        "#1d6b63",
        "#8b2f38",
        "#1d6b63",
        "#1d6b63",
        "#1d6b63",
        "#1d6b63",
        "#1d6b63",
        "#1d6b63",
        "#8b2f38",
        "#8b2f38",
        "#8b2f38",
        "#8b2f38",
        "#1d6b63",
        "#8b2f38",
        "#1d6b63",
        "#8b2f38",
        "#1d6b63",
        "#1d6b63",
        "#8b2f38",
        "#8b2f38",
        "#8b2f38",
        "#1d6b63",
        "#1d6b63",
        "#8b2f38",
        "#1d6b63",
        "#8b2f38",
        "#8b2f38",
        "#1d6b63",
        "#1d6b63",
        "#1d6b63",
        "#8b2f38",
        "#1d6b63",
        "#8b2f38",
        "#1d6b63",
        "#8b2f38",
        "#1d6b63",
        "#1d6b63",
        "#8b2f38",
        "#1d6b63",
        "#1d6b63",
        "#1d6b63",
        "#1d6b63",
        "#8b2f38",
        "#1d6b63",
        "#1d6b63",
        "#8b2f38",
        "#8b2f38",
        "#8b2f38",
        "#1d6b63",
        "#1d6b63",
        "#1d6b63",
        "#1d6b63",
        "#1d6b63",
        "#1d6b63",
        "#8b2f38",
        "#8b2f38",
        "#1d6b63",
        "#1d6b63",
        "#1d6b63",
        "#8b2f38",
        "#1d6b63",
        "#1d6b63",
        "#8b2f38",
        "#1d6b63",
        "#8b2f38",
        "#8b2f38",
        "#1d6b63",
        "#1d6b63",
        "#8b2f38",
        "#8b2f38",
        "#8b2f38",
        "#1d6b63",
        "#1d6b63",
        "#1d6b63",
        "#8b2f38",
        "#8b2f38"
      ]
    }
  ]
}
